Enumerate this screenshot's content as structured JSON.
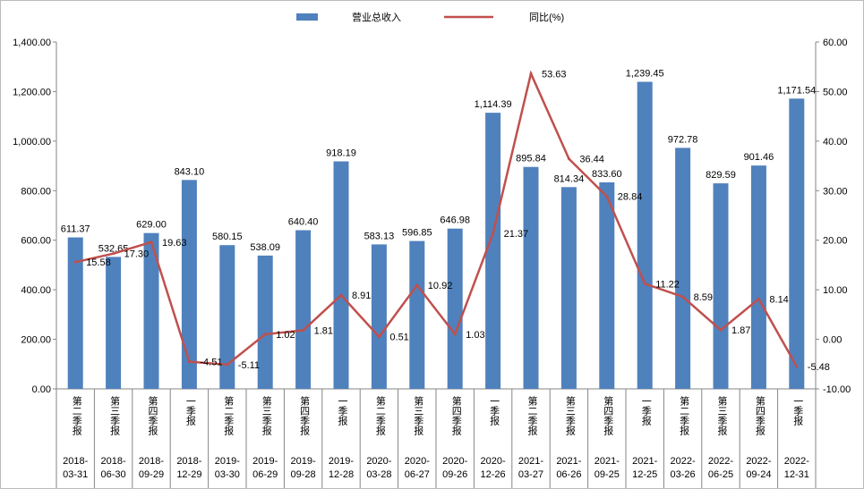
{
  "chart_data": {
    "type": "bar+line",
    "legend": [
      {
        "name": "营业总收入",
        "color": "#4f81bd"
      },
      {
        "name": "同比(%)",
        "color": "#c0504d"
      }
    ],
    "legend_position": "top",
    "categories": [
      {
        "quarter": "第一季报",
        "date": "2018-03-31"
      },
      {
        "quarter": "第二季报",
        "date": "2018-06-30"
      },
      {
        "quarter": "第三季报",
        "date": "2018-09-29"
      },
      {
        "quarter": "第四季报",
        "date": "2018-12-29"
      },
      {
        "quarter": "第一季报",
        "date": "2019-03-30"
      },
      {
        "quarter": "第二季报",
        "date": "2019-06-29"
      },
      {
        "quarter": "第三季报",
        "date": "2019-09-28"
      },
      {
        "quarter": "第四季报",
        "date": "2019-12-28"
      },
      {
        "quarter": "第一季报",
        "date": "2020-03-28"
      },
      {
        "quarter": "第二季报",
        "date": "2020-06-27"
      },
      {
        "quarter": "第三季报",
        "date": "2020-09-26"
      },
      {
        "quarter": "第四季报",
        "date": "2020-12-26"
      },
      {
        "quarter": "第一季报",
        "date": "2021-03-27"
      },
      {
        "quarter": "第二季报",
        "date": "2021-06-26"
      },
      {
        "quarter": "第三季报",
        "date": "2021-09-25"
      },
      {
        "quarter": "第四季报",
        "date": "2021-12-25"
      },
      {
        "quarter": "第一季报",
        "date": "2022-03-26"
      },
      {
        "quarter": "第二季报",
        "date": "2022-06-25"
      },
      {
        "quarter": "第三季报",
        "date": "2022-09-24"
      },
      {
        "quarter": "第四季报",
        "date": "2022-12-31"
      }
    ],
    "visible_quarter_labels": [
      "第二季报",
      "第三季报",
      "第四季报",
      "一季报",
      "第二季报",
      "第三季报",
      "第四季报",
      "一季报",
      "第二季报",
      "第三季报",
      "第四季报",
      "一季报",
      "第二季报",
      "第三季报",
      "第四季报",
      "一季报",
      "第二季报",
      "第三季报",
      "第四季报",
      "一季报"
    ],
    "series": [
      {
        "name": "营业总收入",
        "type": "bar",
        "axis": "left",
        "values": [
          611.37,
          532.65,
          629.0,
          843.1,
          580.15,
          538.09,
          640.4,
          918.19,
          583.13,
          596.85,
          646.98,
          1114.39,
          895.84,
          814.34,
          833.6,
          1239.45,
          972.78,
          829.59,
          901.46,
          1171.54
        ],
        "labels": [
          "611.37",
          "532.65",
          "629.00",
          "843.10",
          "580.15",
          "538.09",
          "640.40",
          "918.19",
          "583.13",
          "596.85",
          "646.98",
          "1,114.39",
          "895.84",
          "814.34",
          "833.60",
          "1,239.45",
          "972.78",
          "829.59",
          "901.46",
          "1,171.54"
        ]
      },
      {
        "name": "同比(%)",
        "type": "line",
        "axis": "right",
        "values": [
          15.58,
          17.3,
          19.63,
          -4.51,
          -5.11,
          1.02,
          1.81,
          8.91,
          0.51,
          10.92,
          1.03,
          21.37,
          53.63,
          36.44,
          28.84,
          11.22,
          8.59,
          1.87,
          8.14,
          -5.48
        ],
        "labels": [
          "15.58",
          "17.30",
          "19.63",
          "-4.51",
          "-5.11",
          "1.02",
          "1.81",
          "8.91",
          "0.51",
          "10.92",
          "1.03",
          "21.37",
          "53.63",
          "36.44",
          "28.84",
          "11.22",
          "8.59",
          "1.87",
          "8.14",
          "-5.48"
        ]
      }
    ],
    "left_axis": {
      "range": [
        0,
        1400
      ],
      "ticks": [
        "0.00",
        "200.00",
        "400.00",
        "600.00",
        "800.00",
        "1,000.00",
        "1,200.00",
        "1,400.00"
      ]
    },
    "right_axis": {
      "range": [
        -10,
        60
      ],
      "ticks": [
        "-10.00",
        "0.00",
        "10.00",
        "20.00",
        "30.00",
        "40.00",
        "50.00",
        "60.00"
      ]
    },
    "grid": false
  }
}
